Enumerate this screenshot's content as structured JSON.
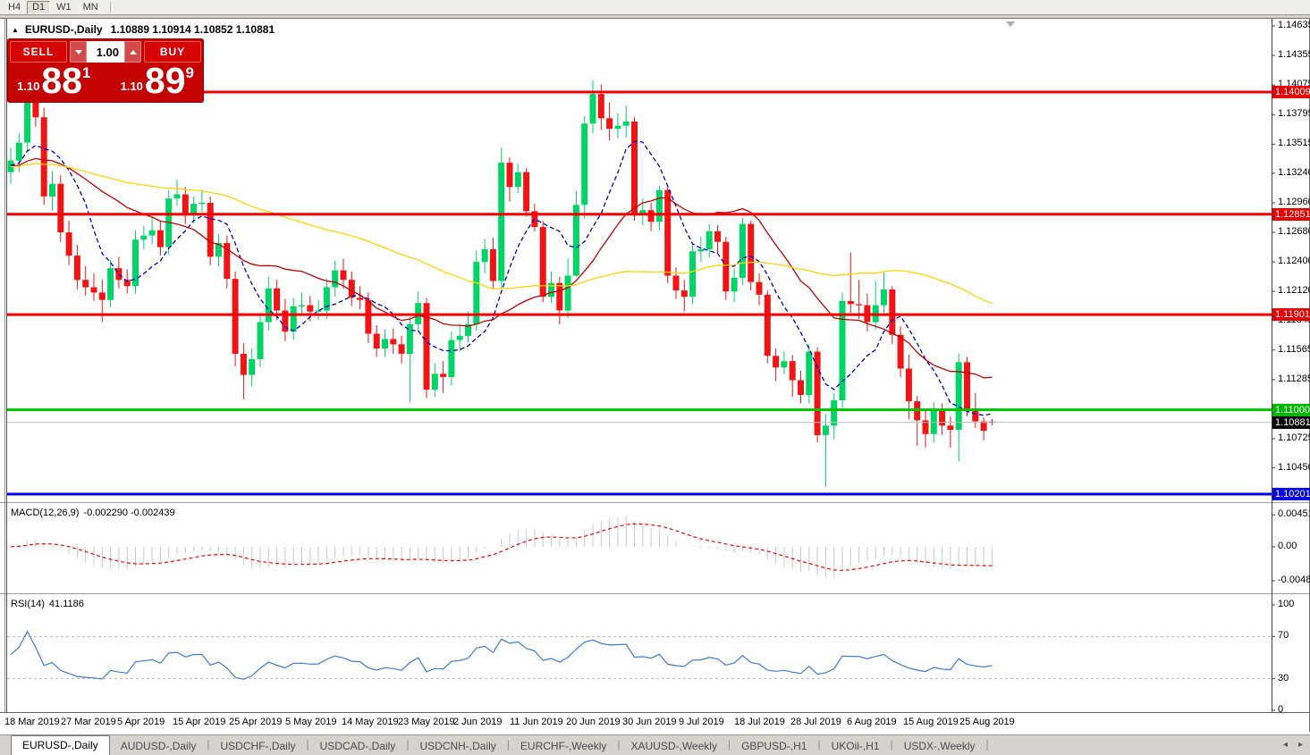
{
  "toolbar": {
    "timeframes": [
      {
        "label": "H4",
        "active": false
      },
      {
        "label": "D1",
        "active": true
      },
      {
        "label": "W1",
        "active": false
      },
      {
        "label": "MN",
        "active": false
      }
    ]
  },
  "chart": {
    "collapse_icon": "▲",
    "symbol_title": "EURUSD-,Daily",
    "ohlc_text": "1.10889 1.10914 1.10852 1.10881"
  },
  "trade_panel": {
    "sell_label": "SELL",
    "buy_label": "BUY",
    "volume": "1.00",
    "sell_price_prefix": "1.10",
    "sell_price_big": "88",
    "sell_price_sup": "1",
    "buy_price_prefix": "1.10",
    "buy_price_big": "89",
    "buy_price_sup": "9",
    "panel_color": "#c40202",
    "button_color": "#d60404"
  },
  "price_axis": {
    "ticks": [
      {
        "label": "1.14635",
        "price": 1.14635
      },
      {
        "label": "1.14355",
        "price": 1.14355
      },
      {
        "label": "1.14075",
        "price": 1.14075
      },
      {
        "label": "1.13795",
        "price": 1.13795
      },
      {
        "label": "1.13515",
        "price": 1.13515
      },
      {
        "label": "1.13240",
        "price": 1.1324
      },
      {
        "label": "1.12960",
        "price": 1.1296
      },
      {
        "label": "1.12680",
        "price": 1.1268
      },
      {
        "label": "1.12400",
        "price": 1.124
      },
      {
        "label": "1.12120",
        "price": 1.1212
      },
      {
        "label": "1.11845",
        "price": 1.11845
      },
      {
        "label": "1.11565",
        "price": 1.11565
      },
      {
        "label": "1.11285",
        "price": 1.11285
      },
      {
        "label": "1.10725",
        "price": 1.10725
      },
      {
        "label": "1.10450",
        "price": 1.1045
      }
    ],
    "badges": [
      {
        "label": "1.14009",
        "price": 1.14009,
        "color": "#e60000"
      },
      {
        "label": "1.12851",
        "price": 1.12851,
        "color": "#e60000"
      },
      {
        "label": "1.11901",
        "price": 1.11901,
        "color": "#e60000"
      },
      {
        "label": "1.11000",
        "price": 1.11,
        "color": "#00b800"
      },
      {
        "label": "1.10881",
        "price": 1.10881,
        "color": "#000000"
      },
      {
        "label": "1.10201",
        "price": 1.10201,
        "color": "#0000dd"
      }
    ]
  },
  "hlines": [
    {
      "price": 1.14009,
      "color": "#f40000",
      "width": 3
    },
    {
      "price": 1.12851,
      "color": "#f40000",
      "width": 3
    },
    {
      "price": 1.11901,
      "color": "#f40000",
      "width": 3
    },
    {
      "price": 1.11,
      "color": "#00c400",
      "width": 3
    },
    {
      "price": 1.10201,
      "color": "#0000f0",
      "width": 3
    },
    {
      "price": 1.10881,
      "color": "#bcbcbc",
      "width": 1
    }
  ],
  "indicators": {
    "macd": {
      "label": "MACD(12,26,9)",
      "values_text": "-0.002290 -0.002439",
      "fast": 12,
      "slow": 26,
      "signal": 9,
      "histogram_color": "#c8c8c8",
      "signal_color": "#ff0000",
      "axis_labels": [
        {
          "label": "0.004517",
          "value": 0.004517
        },
        {
          "label": "0.00",
          "value": 0
        },
        {
          "label": "-0.004806",
          "value": -0.004806
        }
      ]
    },
    "rsi": {
      "label": "RSI(14)",
      "value_text": "41.1186",
      "period": 14,
      "levels": [
        70,
        30
      ],
      "line_color": "#3a7bd5",
      "axis_labels": [
        {
          "label": "100",
          "value": 100
        },
        {
          "label": "70",
          "value": 70
        },
        {
          "label": "30",
          "value": 30
        },
        {
          "label": "0",
          "value": 0
        }
      ]
    }
  },
  "date_axis": {
    "labels": [
      "18 Mar 2019",
      "27 Mar 2019",
      "5 Apr 2019",
      "15 Apr 2019",
      "25 Apr 2019",
      "5 May 2019",
      "14 May 2019",
      "23 May 2019",
      "2 Jun 2019",
      "11 Jun 2019",
      "20 Jun 2019",
      "30 Jun 2019",
      "9 Jul 2019",
      "18 Jul 2019",
      "28 Jul 2019",
      "6 Aug 2019",
      "15 Aug 2019",
      "25 Aug 2019"
    ]
  },
  "tabs": {
    "items": [
      {
        "label": "EURUSD-,Daily",
        "active": true
      },
      {
        "label": "AUDUSD-,Daily",
        "active": false
      },
      {
        "label": "USDCHF-,Daily",
        "active": false
      },
      {
        "label": "USDCAD-,Daily",
        "active": false
      },
      {
        "label": "USDCNH-,Daily",
        "active": false
      },
      {
        "label": "EURCHF-,Weekly",
        "active": false
      },
      {
        "label": "XAUUSD-,Weekly",
        "active": false
      },
      {
        "label": "GBPUSD-,H1",
        "active": false
      },
      {
        "label": "UKOil-,H1",
        "active": false
      },
      {
        "label": "USDX-,Weekly",
        "active": false
      }
    ],
    "scroll_left": "◂",
    "scroll_right": "▸"
  },
  "chart_data": {
    "type": "candlestick",
    "symbol": "EURUSD",
    "timeframe": "Daily",
    "bull_color": "#00d466",
    "bear_color": "#f01414",
    "y_axis": {
      "min": 1.1014,
      "max": 1.1465
    },
    "x_labels": [
      "18 Mar 2019",
      "27 Mar 2019",
      "5 Apr 2019",
      "15 Apr 2019",
      "25 Apr 2019",
      "5 May 2019",
      "14 May 2019",
      "23 May 2019",
      "2 Jun 2019",
      "11 Jun 2019",
      "20 Jun 2019",
      "30 Jun 2019",
      "9 Jul 2019",
      "18 Jul 2019",
      "28 Jul 2019",
      "6 Aug 2019",
      "15 Aug 2019",
      "25 Aug 2019"
    ],
    "moving_averages": [
      {
        "period": 8,
        "color": "#0000c8",
        "style": "dashed"
      },
      {
        "period": 21,
        "color": "#c80000",
        "style": "solid"
      },
      {
        "period": 55,
        "color": "#ffd400",
        "style": "solid"
      }
    ],
    "candles": [
      [
        1.1325,
        1.1348,
        1.1314,
        1.1336
      ],
      [
        1.1336,
        1.1362,
        1.1325,
        1.1353
      ],
      [
        1.1353,
        1.1448,
        1.1344,
        1.1417
      ],
      [
        1.1417,
        1.1437,
        1.1368,
        1.1377
      ],
      [
        1.1377,
        1.1386,
        1.1294,
        1.1302
      ],
      [
        1.1302,
        1.1326,
        1.1288,
        1.1314
      ],
      [
        1.1314,
        1.1322,
        1.1259,
        1.1268
      ],
      [
        1.1268,
        1.1279,
        1.1237,
        1.1246
      ],
      [
        1.1246,
        1.1256,
        1.1214,
        1.1223
      ],
      [
        1.1223,
        1.1236,
        1.1208,
        1.1216
      ],
      [
        1.1216,
        1.1229,
        1.1203,
        1.1211
      ],
      [
        1.1211,
        1.1223,
        1.1183,
        1.1204
      ],
      [
        1.1204,
        1.1242,
        1.1197,
        1.1234
      ],
      [
        1.1234,
        1.1245,
        1.1215,
        1.1223
      ],
      [
        1.1223,
        1.1233,
        1.121,
        1.1217
      ],
      [
        1.1217,
        1.127,
        1.121,
        1.1261
      ],
      [
        1.1261,
        1.1274,
        1.1252,
        1.1265
      ],
      [
        1.1265,
        1.1282,
        1.1257,
        1.127
      ],
      [
        1.127,
        1.1278,
        1.1246,
        1.1254
      ],
      [
        1.1254,
        1.1308,
        1.1247,
        1.13
      ],
      [
        1.13,
        1.1318,
        1.1293,
        1.1304
      ],
      [
        1.1304,
        1.1311,
        1.1276,
        1.1284
      ],
      [
        1.1284,
        1.1302,
        1.1277,
        1.1295
      ],
      [
        1.1295,
        1.1307,
        1.1287,
        1.1296
      ],
      [
        1.1296,
        1.1302,
        1.1237,
        1.1245
      ],
      [
        1.1245,
        1.1266,
        1.1236,
        1.1258
      ],
      [
        1.1258,
        1.1265,
        1.1215,
        1.1224
      ],
      [
        1.1224,
        1.1231,
        1.1141,
        1.1153
      ],
      [
        1.1153,
        1.1163,
        1.111,
        1.1133
      ],
      [
        1.1133,
        1.1158,
        1.1122,
        1.1148
      ],
      [
        1.1148,
        1.1192,
        1.114,
        1.1183
      ],
      [
        1.1183,
        1.1226,
        1.1175,
        1.1215
      ],
      [
        1.1215,
        1.1223,
        1.1185,
        1.1194
      ],
      [
        1.1194,
        1.1205,
        1.1165,
        1.1174
      ],
      [
        1.1174,
        1.1206,
        1.1166,
        1.1198
      ],
      [
        1.1198,
        1.1211,
        1.119,
        1.1199
      ],
      [
        1.1199,
        1.1208,
        1.1184,
        1.1193
      ],
      [
        1.1193,
        1.1204,
        1.1185,
        1.1194
      ],
      [
        1.1194,
        1.1224,
        1.1186,
        1.1216
      ],
      [
        1.1216,
        1.1241,
        1.1207,
        1.1232
      ],
      [
        1.1232,
        1.1243,
        1.1215,
        1.1223
      ],
      [
        1.1223,
        1.1231,
        1.1198,
        1.1206
      ],
      [
        1.1206,
        1.1217,
        1.1195,
        1.1204
      ],
      [
        1.1204,
        1.1211,
        1.1163,
        1.1172
      ],
      [
        1.1172,
        1.118,
        1.115,
        1.1158
      ],
      [
        1.1158,
        1.1176,
        1.115,
        1.1167
      ],
      [
        1.1167,
        1.1177,
        1.1153,
        1.1162
      ],
      [
        1.1162,
        1.117,
        1.1144,
        1.1153
      ],
      [
        1.1153,
        1.1188,
        1.1107,
        1.1181
      ],
      [
        1.1181,
        1.1212,
        1.1174,
        1.1201
      ],
      [
        1.1201,
        1.1206,
        1.1111,
        1.1119
      ],
      [
        1.1119,
        1.1144,
        1.1112,
        1.1134
      ],
      [
        1.1134,
        1.1146,
        1.1116,
        1.1131
      ],
      [
        1.1131,
        1.1174,
        1.1123,
        1.1166
      ],
      [
        1.1166,
        1.1181,
        1.1155,
        1.117
      ],
      [
        1.117,
        1.1193,
        1.1164,
        1.1181
      ],
      [
        1.1181,
        1.1251,
        1.1175,
        1.124
      ],
      [
        1.124,
        1.1262,
        1.1229,
        1.1252
      ],
      [
        1.1252,
        1.1263,
        1.1215,
        1.1222
      ],
      [
        1.1222,
        1.1348,
        1.1215,
        1.1334
      ],
      [
        1.1334,
        1.1339,
        1.1297,
        1.1311
      ],
      [
        1.1311,
        1.1333,
        1.1305,
        1.1325
      ],
      [
        1.1325,
        1.1329,
        1.1283,
        1.1288
      ],
      [
        1.1288,
        1.1295,
        1.1269,
        1.1273
      ],
      [
        1.1273,
        1.1279,
        1.1202,
        1.1207
      ],
      [
        1.1207,
        1.1231,
        1.1201,
        1.122
      ],
      [
        1.122,
        1.1226,
        1.1181,
        1.1194
      ],
      [
        1.1194,
        1.1243,
        1.1187,
        1.1227
      ],
      [
        1.1227,
        1.1307,
        1.1226,
        1.1294
      ],
      [
        1.1294,
        1.1378,
        1.1281,
        1.1371
      ],
      [
        1.1371,
        1.1412,
        1.1362,
        1.1399
      ],
      [
        1.1399,
        1.1408,
        1.1365,
        1.1376
      ],
      [
        1.1376,
        1.1391,
        1.1355,
        1.1366
      ],
      [
        1.1366,
        1.1381,
        1.1357,
        1.1369
      ],
      [
        1.1369,
        1.1388,
        1.1358,
        1.1373
      ],
      [
        1.1373,
        1.1377,
        1.1279,
        1.1285
      ],
      [
        1.1285,
        1.13,
        1.1275,
        1.1289
      ],
      [
        1.1289,
        1.1296,
        1.1269,
        1.1278
      ],
      [
        1.1278,
        1.1312,
        1.127,
        1.1308
      ],
      [
        1.1308,
        1.1313,
        1.122,
        1.1227
      ],
      [
        1.1227,
        1.1235,
        1.1205,
        1.1213
      ],
      [
        1.1213,
        1.1223,
        1.1193,
        1.1207
      ],
      [
        1.1207,
        1.1257,
        1.12,
        1.125
      ],
      [
        1.125,
        1.1264,
        1.124,
        1.1252
      ],
      [
        1.1252,
        1.1276,
        1.1244,
        1.1269
      ],
      [
        1.1269,
        1.1275,
        1.1248,
        1.1259
      ],
      [
        1.1259,
        1.1264,
        1.1204,
        1.1212
      ],
      [
        1.1212,
        1.1234,
        1.1202,
        1.1225
      ],
      [
        1.1225,
        1.1282,
        1.1218,
        1.1276
      ],
      [
        1.1276,
        1.1279,
        1.1213,
        1.1221
      ],
      [
        1.1221,
        1.1229,
        1.1199,
        1.1209
      ],
      [
        1.1209,
        1.1213,
        1.1144,
        1.1151
      ],
      [
        1.1151,
        1.1158,
        1.1127,
        1.114
      ],
      [
        1.114,
        1.1155,
        1.1134,
        1.1146
      ],
      [
        1.1146,
        1.1152,
        1.1112,
        1.1128
      ],
      [
        1.1128,
        1.1137,
        1.1106,
        1.1114
      ],
      [
        1.1114,
        1.1162,
        1.1106,
        1.1155
      ],
      [
        1.1155,
        1.1159,
        1.1069,
        1.1076
      ],
      [
        1.1076,
        1.1096,
        1.1027,
        1.1085
      ],
      [
        1.1085,
        1.1116,
        1.1072,
        1.1109
      ],
      [
        1.1109,
        1.1211,
        1.1102,
        1.1203
      ],
      [
        1.1203,
        1.1249,
        1.1192,
        1.12
      ],
      [
        1.12,
        1.1223,
        1.1186,
        1.1199
      ],
      [
        1.1199,
        1.121,
        1.1174,
        1.1183
      ],
      [
        1.1183,
        1.1222,
        1.1176,
        1.1199
      ],
      [
        1.1199,
        1.123,
        1.1189,
        1.1214
      ],
      [
        1.1214,
        1.1217,
        1.1162,
        1.1171
      ],
      [
        1.1171,
        1.1179,
        1.1131,
        1.1139
      ],
      [
        1.1139,
        1.1152,
        1.1091,
        1.1108
      ],
      [
        1.1108,
        1.1113,
        1.1066,
        1.109
      ],
      [
        1.109,
        1.11,
        1.1064,
        1.1077
      ],
      [
        1.1077,
        1.1107,
        1.1069,
        1.11
      ],
      [
        1.11,
        1.1106,
        1.1076,
        1.1085
      ],
      [
        1.1085,
        1.1094,
        1.1064,
        1.1081
      ],
      [
        1.1081,
        1.1153,
        1.1051,
        1.1145
      ],
      [
        1.1145,
        1.115,
        1.1094,
        1.1101
      ],
      [
        1.1101,
        1.1116,
        1.1083,
        1.1089
      ],
      [
        1.1089,
        1.1093,
        1.1071,
        1.108
      ],
      [
        1.10889,
        1.10914,
        1.10852,
        1.10881
      ]
    ]
  }
}
